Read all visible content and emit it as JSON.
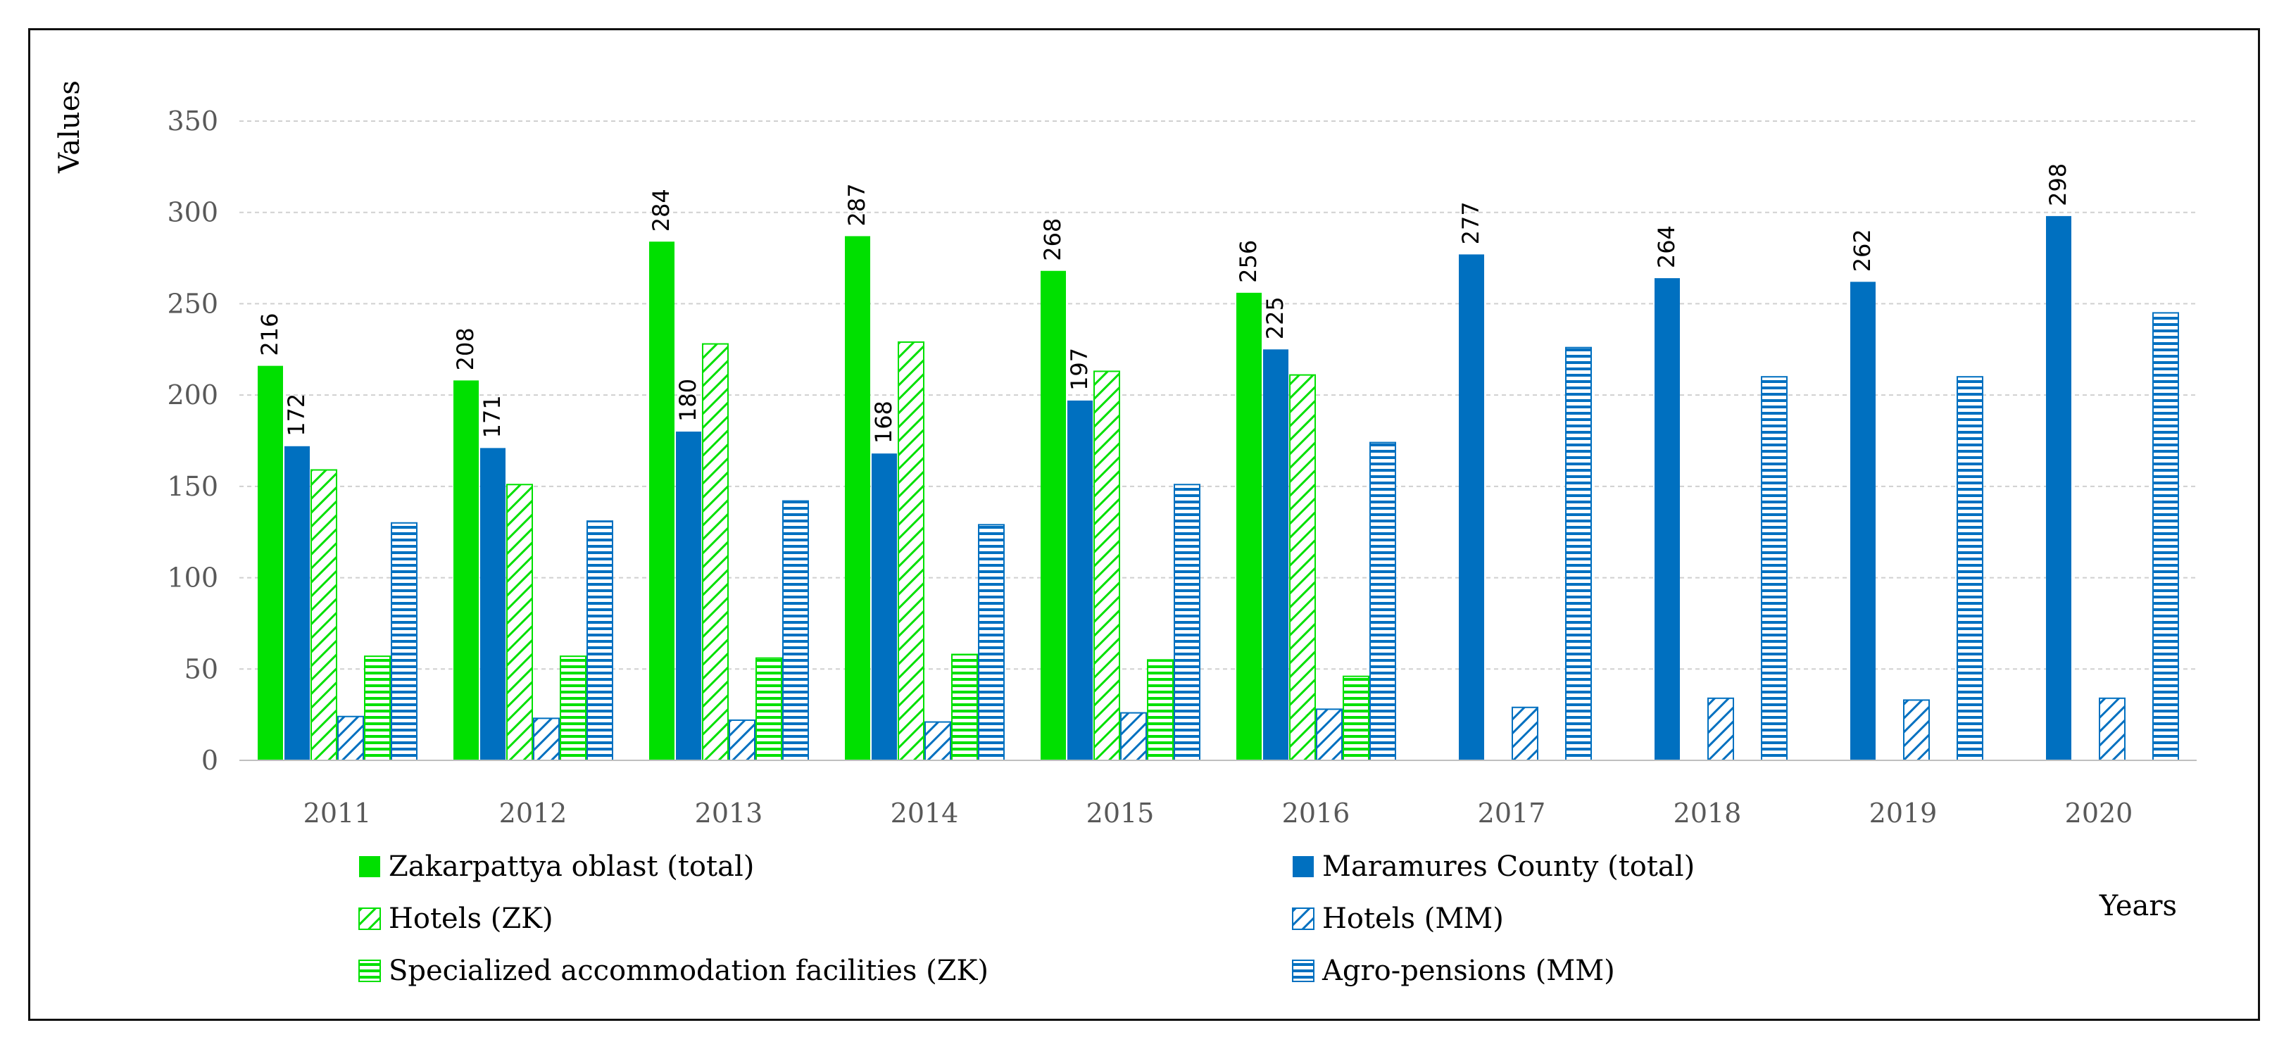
{
  "chart_data": {
    "type": "bar",
    "categories": [
      "2011",
      "2012",
      "2013",
      "2014",
      "2015",
      "2016",
      "2017",
      "2018",
      "2019",
      "2020"
    ],
    "ylabel": "Values",
    "xlabel": "Years",
    "ylim": [
      0,
      350
    ],
    "yticks": [
      0,
      50,
      100,
      150,
      200,
      250,
      300,
      350
    ],
    "grid": true,
    "series": [
      {
        "key": "zk_total",
        "name": "Zakarpattya oblast (total)",
        "color": "#00e000",
        "pattern": "solid",
        "labeled": true,
        "values": [
          216,
          208,
          284,
          287,
          268,
          256,
          null,
          null,
          null,
          null
        ]
      },
      {
        "key": "mm_total",
        "name": "Maramures County (total)",
        "color": "#0070c0",
        "pattern": "solid",
        "labeled": true,
        "values": [
          172,
          171,
          180,
          168,
          197,
          225,
          277,
          264,
          262,
          298
        ]
      },
      {
        "key": "zk_hotels",
        "name": "Hotels (ZK)",
        "color": "#00e000",
        "pattern": "diag",
        "labeled": false,
        "values": [
          159,
          151,
          228,
          229,
          213,
          211,
          null,
          null,
          null,
          null
        ]
      },
      {
        "key": "mm_hotels",
        "name": "Hotels (MM)",
        "color": "#0070c0",
        "pattern": "diag",
        "labeled": false,
        "values": [
          24,
          23,
          22,
          21,
          26,
          28,
          29,
          34,
          33,
          34
        ]
      },
      {
        "key": "zk_spec",
        "name": "Specialized accommodation facilities (ZK)",
        "color": "#00e000",
        "pattern": "horiz",
        "labeled": false,
        "values": [
          57,
          57,
          56,
          58,
          55,
          46,
          null,
          null,
          null,
          null
        ]
      },
      {
        "key": "mm_agro",
        "name": "Agro-pensions (MM)",
        "color": "#0070c0",
        "pattern": "horiz",
        "labeled": false,
        "values": [
          130,
          131,
          142,
          129,
          151,
          174,
          226,
          210,
          210,
          245
        ]
      }
    ],
    "legend": [
      "Zakarpattya oblast (total)",
      "Maramures County (total)",
      "Hotels (ZK)",
      "Hotels (MM)",
      "Specialized accommodation facilities (ZK)",
      "Agro-pensions (MM)"
    ]
  }
}
